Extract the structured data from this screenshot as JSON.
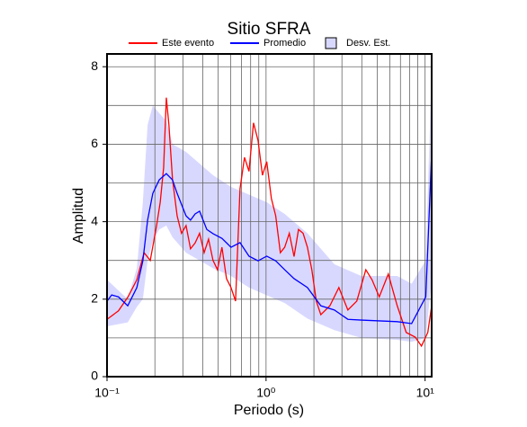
{
  "chart_data": {
    "type": "line",
    "title": "Sitio SFRA",
    "xlabel": "Periodo (s)",
    "ylabel": "Amplitud",
    "xscale": "log",
    "xlim": [
      0.1,
      11
    ],
    "ylim": [
      0,
      8.33
    ],
    "xticks": [
      {
        "value": 0.1,
        "label": "10⁻¹"
      },
      {
        "value": 1,
        "label": "10⁰"
      },
      {
        "value": 10,
        "label": "10¹"
      }
    ],
    "xminorticks": [
      0.2,
      0.3,
      0.4,
      0.5,
      0.6,
      0.7,
      0.8,
      0.9,
      2,
      3,
      4,
      5,
      6,
      7,
      8,
      9
    ],
    "yticks": [
      0,
      2,
      4,
      6,
      8
    ],
    "yminorticks": [
      1,
      3,
      5,
      7
    ],
    "grid": true,
    "legend": "top",
    "series": [
      {
        "name": "Este evento",
        "color": "#ff0000",
        "x": [
          0.1,
          0.118,
          0.135,
          0.154,
          0.171,
          0.187,
          0.205,
          0.216,
          0.227,
          0.236,
          0.245,
          0.258,
          0.276,
          0.294,
          0.314,
          0.335,
          0.358,
          0.382,
          0.408,
          0.435,
          0.464,
          0.495,
          0.528,
          0.564,
          0.602,
          0.643,
          0.686,
          0.732,
          0.781,
          0.834,
          0.89,
          0.949,
          1.01,
          1.08,
          1.15,
          1.23,
          1.31,
          1.4,
          1.5,
          1.6,
          1.71,
          1.82,
          1.94,
          2.07,
          2.21,
          2.52,
          2.87,
          3.27,
          3.72,
          4.24,
          4.64,
          5.15,
          5.87,
          6.68,
          7.61,
          8.67,
          9.49,
          10.4,
          11.0
        ],
        "values": [
          1.48,
          1.7,
          2.05,
          2.5,
          3.2,
          3.0,
          3.9,
          4.5,
          5.4,
          7.2,
          6.5,
          5.1,
          4.15,
          3.7,
          3.9,
          3.3,
          3.45,
          3.7,
          3.2,
          3.55,
          3.0,
          2.76,
          3.34,
          2.53,
          2.3,
          1.95,
          4.85,
          5.66,
          5.3,
          6.55,
          6.1,
          5.2,
          5.55,
          4.6,
          4.15,
          3.2,
          3.34,
          3.7,
          3.1,
          3.8,
          3.7,
          3.34,
          2.76,
          1.95,
          1.6,
          1.83,
          2.3,
          1.72,
          1.95,
          2.76,
          2.5,
          2.06,
          2.65,
          1.83,
          1.14,
          1.02,
          0.79,
          1.14,
          1.83
        ]
      },
      {
        "name": "Promedio",
        "color": "#0000ff",
        "x": [
          0.1,
          0.107,
          0.118,
          0.135,
          0.154,
          0.168,
          0.18,
          0.194,
          0.213,
          0.236,
          0.258,
          0.276,
          0.314,
          0.335,
          0.358,
          0.382,
          0.424,
          0.464,
          0.528,
          0.602,
          0.686,
          0.781,
          0.89,
          1.01,
          1.15,
          1.31,
          1.5,
          1.82,
          2.21,
          2.69,
          3.27,
          3.97,
          5.15,
          6.68,
          8.23,
          10.1,
          10.6,
          11.0
        ],
        "values": [
          1.95,
          2.11,
          2.06,
          1.83,
          2.3,
          2.99,
          4.04,
          4.73,
          5.08,
          5.24,
          5.08,
          4.73,
          4.15,
          4.04,
          4.2,
          4.27,
          3.8,
          3.69,
          3.57,
          3.34,
          3.46,
          3.11,
          2.99,
          3.11,
          2.99,
          2.76,
          2.53,
          2.3,
          1.83,
          1.72,
          1.48,
          1.46,
          1.44,
          1.42,
          1.37,
          2.06,
          4.15,
          5.78
        ]
      }
    ],
    "band": {
      "name": "Desv. Est.",
      "color": "#d8d8ff",
      "x": [
        0.1,
        0.135,
        0.154,
        0.168,
        0.18,
        0.194,
        0.213,
        0.236,
        0.258,
        0.314,
        0.382,
        0.464,
        0.602,
        0.781,
        1.01,
        1.31,
        1.82,
        2.69,
        3.97,
        6.68,
        8.23,
        10.1,
        11.0
      ],
      "upper": [
        2.5,
        2.0,
        2.8,
        4.5,
        6.5,
        7.0,
        6.8,
        6.6,
        6.0,
        5.8,
        5.5,
        5.2,
        4.9,
        4.7,
        4.5,
        4.2,
        3.7,
        2.9,
        2.6,
        2.6,
        2.4,
        3.0,
        8.0
      ],
      "lower": [
        1.3,
        1.4,
        1.8,
        2.0,
        3.0,
        3.5,
        3.8,
        3.9,
        3.6,
        3.2,
        3.0,
        2.8,
        2.6,
        2.3,
        2.1,
        1.9,
        1.5,
        1.2,
        1.0,
        0.95,
        0.9,
        1.0,
        2.5
      ]
    }
  }
}
